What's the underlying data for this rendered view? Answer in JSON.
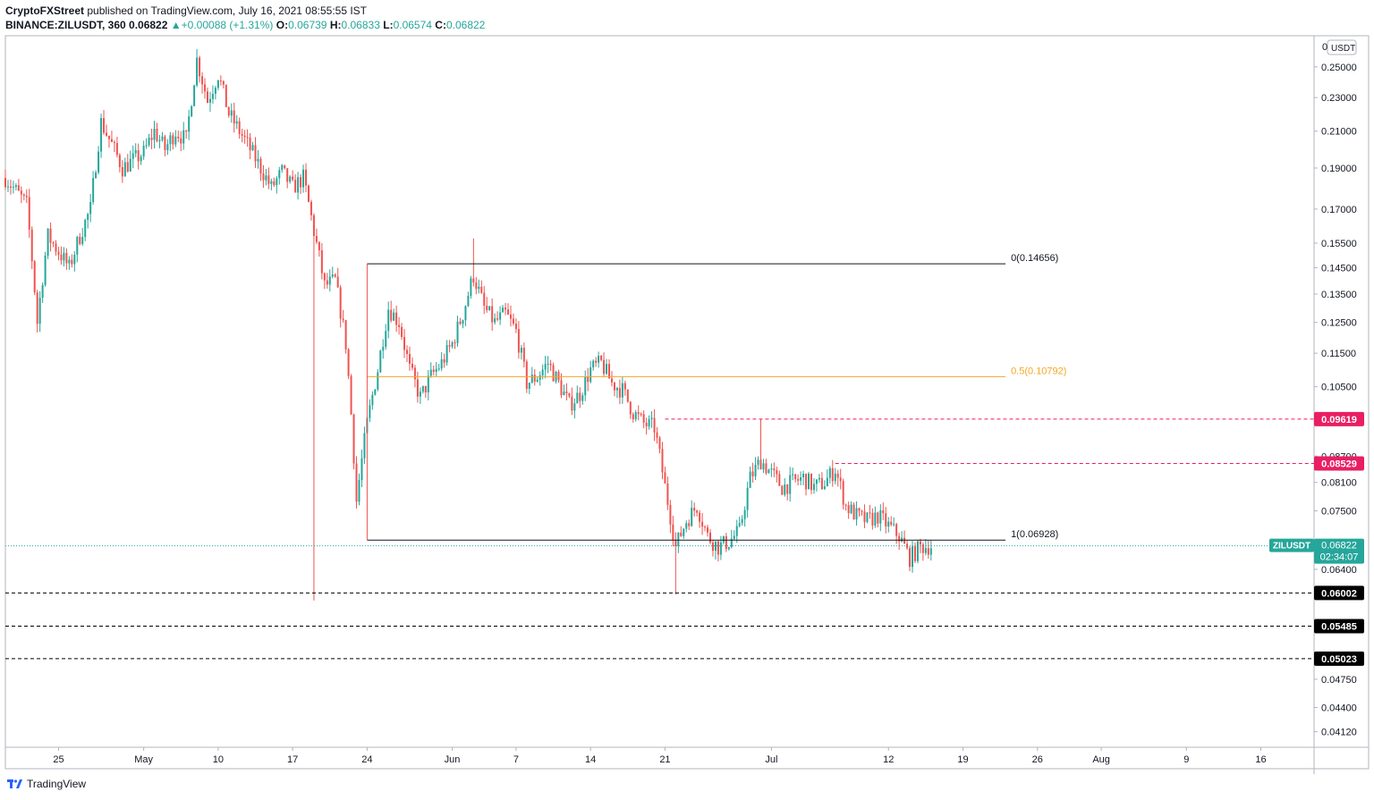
{
  "header": {
    "author": "CryptoFXStreet",
    "published": " published on TradingView.com, July 16, 2021 08:55:55 IST",
    "symbol": "BINANCE:ZILUSDT, 360",
    "last": "0.06822",
    "change": "+0.00088 (+1.31%)",
    "o_label": "O:",
    "o": "0.06739",
    "h_label": "H:",
    "h": "0.06833",
    "l_label": "L:",
    "l": "0.06574",
    "c_label": "C:",
    "c": "0.06822"
  },
  "footer": {
    "brand": "TradingView"
  },
  "chart_data": {
    "type": "candlestick",
    "scale": "log",
    "currency": "USDT",
    "yticks": [
      "0.25000",
      "0.23000",
      "0.21000",
      "0.19000",
      "0.17000",
      "0.15500",
      "0.14500",
      "0.13500",
      "0.12500",
      "0.11500",
      "0.10500",
      "0.08700",
      "0.08100",
      "0.07500",
      "0.06400",
      "0.04750",
      "0.04400",
      "0.04120"
    ],
    "ytick_values": [
      0.25,
      0.23,
      0.21,
      0.19,
      0.17,
      0.155,
      0.145,
      0.135,
      0.125,
      0.115,
      0.105,
      0.087,
      0.081,
      0.075,
      0.064,
      0.0475,
      0.044,
      0.0412
    ],
    "ylim": [
      0.0395,
      0.272
    ],
    "xticks": [
      "25",
      "May",
      "10",
      "17",
      "24",
      "Jun",
      "7",
      "14",
      "21",
      "Jul",
      "12",
      "19",
      "26",
      "Aug",
      "9",
      "16"
    ],
    "xtick_dates": [
      "2021-04-25",
      "2021-05-03",
      "2021-05-10",
      "2021-05-17",
      "2021-05-24",
      "2021-06-01",
      "2021-06-07",
      "2021-06-14",
      "2021-06-21",
      "2021-07-01",
      "2021-07-12",
      "2021-07-19",
      "2021-07-26",
      "2021-08-01",
      "2021-08-09",
      "2021-08-16"
    ],
    "xlim": [
      "2021-04-20",
      "2021-08-21"
    ],
    "fib": [
      {
        "label": "0(0.14656)",
        "value": 0.14656,
        "color": "#131722",
        "from": "2021-05-24",
        "to": "2021-07-23"
      },
      {
        "label": "0.5(0.10792)",
        "value": 0.10792,
        "color": "#f5a623",
        "from": "2021-05-24",
        "to": "2021-07-23"
      },
      {
        "label": "1(0.06928)",
        "value": 0.06928,
        "color": "#131722",
        "from": "2021-05-24",
        "to": "2021-07-23"
      }
    ],
    "levels": [
      {
        "label": "0.09619",
        "value": 0.09619,
        "color": "#e91e63",
        "from": "2021-06-21"
      },
      {
        "label": "0.08529",
        "value": 0.08529,
        "color": "#e91e63",
        "from": "2021-07-07"
      },
      {
        "label": "0.06002",
        "value": 0.06002,
        "color": "#000000",
        "from": "2021-04-20"
      },
      {
        "label": "0.05485",
        "value": 0.05485,
        "color": "#000000",
        "from": "2021-04-20"
      },
      {
        "label": "0.05023",
        "value": 0.05023,
        "color": "#000000",
        "from": "2021-04-20"
      }
    ],
    "last_price": {
      "symbol": "ZILUSDT",
      "value": 0.06822,
      "countdown": "02:34:07",
      "color": "#26a69a"
    },
    "close_path": [
      [
        "2021-04-20",
        0.185
      ],
      [
        "2021-04-22",
        0.172
      ],
      [
        "2021-04-23",
        0.125
      ],
      [
        "2021-04-24",
        0.158
      ],
      [
        "2021-04-26",
        0.145
      ],
      [
        "2021-04-27",
        0.158
      ],
      [
        "2021-04-28",
        0.17
      ],
      [
        "2021-04-29",
        0.215
      ],
      [
        "2021-05-01",
        0.19
      ],
      [
        "2021-05-03",
        0.198
      ],
      [
        "2021-05-04",
        0.21
      ],
      [
        "2021-05-05",
        0.2
      ],
      [
        "2021-05-06",
        0.21
      ],
      [
        "2021-05-07",
        0.205
      ],
      [
        "2021-05-08",
        0.255
      ],
      [
        "2021-05-09",
        0.228
      ],
      [
        "2021-05-10",
        0.245
      ],
      [
        "2021-05-11",
        0.22
      ],
      [
        "2021-05-12",
        0.21
      ],
      [
        "2021-05-13",
        0.2
      ],
      [
        "2021-05-14",
        0.19
      ],
      [
        "2021-05-15",
        0.18
      ],
      [
        "2021-05-16",
        0.188
      ],
      [
        "2021-05-17",
        0.18
      ],
      [
        "2021-05-18",
        0.185
      ],
      [
        "2021-05-19",
        0.16
      ],
      [
        "2021-05-20",
        0.138
      ],
      [
        "2021-05-21",
        0.14
      ],
      [
        "2021-05-22",
        0.118
      ],
      [
        "2021-05-23",
        0.077
      ],
      [
        "2021-05-24",
        0.095
      ],
      [
        "2021-05-25",
        0.11
      ],
      [
        "2021-05-26",
        0.13
      ],
      [
        "2021-05-27",
        0.125
      ],
      [
        "2021-05-28",
        0.11
      ],
      [
        "2021-05-29",
        0.102
      ],
      [
        "2021-05-30",
        0.108
      ],
      [
        "2021-05-31",
        0.112
      ],
      [
        "2021-06-01",
        0.118
      ],
      [
        "2021-06-02",
        0.128
      ],
      [
        "2021-06-03",
        0.142
      ],
      [
        "2021-06-04",
        0.13
      ],
      [
        "2021-06-05",
        0.125
      ],
      [
        "2021-06-06",
        0.128
      ],
      [
        "2021-06-07",
        0.122
      ],
      [
        "2021-06-08",
        0.106
      ],
      [
        "2021-06-09",
        0.108
      ],
      [
        "2021-06-10",
        0.112
      ],
      [
        "2021-06-11",
        0.106
      ],
      [
        "2021-06-12",
        0.1
      ],
      [
        "2021-06-13",
        0.103
      ],
      [
        "2021-06-14",
        0.11
      ],
      [
        "2021-06-15",
        0.112
      ],
      [
        "2021-06-16",
        0.106
      ],
      [
        "2021-06-17",
        0.104
      ],
      [
        "2021-06-18",
        0.098
      ],
      [
        "2021-06-19",
        0.095
      ],
      [
        "2021-06-20",
        0.094
      ],
      [
        "2021-06-21",
        0.08
      ],
      [
        "2021-06-22",
        0.068
      ],
      [
        "2021-06-23",
        0.073
      ],
      [
        "2021-06-24",
        0.076
      ],
      [
        "2021-06-25",
        0.07
      ],
      [
        "2021-06-26",
        0.068
      ],
      [
        "2021-06-27",
        0.069
      ],
      [
        "2021-06-28",
        0.071
      ],
      [
        "2021-06-29",
        0.082
      ],
      [
        "2021-06-30",
        0.086
      ],
      [
        "2021-07-01",
        0.083
      ],
      [
        "2021-07-02",
        0.08
      ],
      [
        "2021-07-03",
        0.081
      ],
      [
        "2021-07-04",
        0.082
      ],
      [
        "2021-07-05",
        0.08
      ],
      [
        "2021-07-06",
        0.081
      ],
      [
        "2021-07-07",
        0.084
      ],
      [
        "2021-07-08",
        0.076
      ],
      [
        "2021-07-09",
        0.074
      ],
      [
        "2021-07-10",
        0.073
      ],
      [
        "2021-07-11",
        0.074
      ],
      [
        "2021-07-12",
        0.072
      ],
      [
        "2021-07-13",
        0.07
      ],
      [
        "2021-07-14",
        0.066
      ],
      [
        "2021-07-15",
        0.068
      ],
      [
        "2021-07-16",
        0.0682
      ]
    ],
    "wicks": [
      {
        "date": "2021-05-19",
        "low": 0.0588
      },
      {
        "date": "2021-06-03",
        "high": 0.157
      },
      {
        "date": "2021-06-22",
        "low": 0.0598
      },
      {
        "date": "2021-06-30",
        "high": 0.0962
      }
    ]
  }
}
